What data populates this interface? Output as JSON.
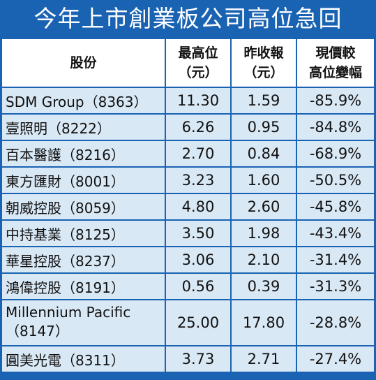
{
  "title": "今年上市創業板公司高位急回",
  "columns": {
    "stock": "股份",
    "high": [
      "最高位",
      "（元）"
    ],
    "close": [
      "昨收報",
      "（元）"
    ],
    "change": [
      "現價較",
      "高位變幅"
    ]
  },
  "rows": [
    {
      "name": "SDM Group（8363）",
      "high": "11.30",
      "close": "1.59",
      "change": "-85.9%"
    },
    {
      "name": "壹照明（8222）",
      "high": "6.26",
      "close": "0.95",
      "change": "-84.8%"
    },
    {
      "name": "百本醫護（8216）",
      "high": "2.70",
      "close": "0.84",
      "change": "-68.9%"
    },
    {
      "name": "東方匯財（8001）",
      "high": "3.23",
      "close": "1.60",
      "change": "-50.5%"
    },
    {
      "name": "朝威控股（8059）",
      "high": "4.80",
      "close": "2.60",
      "change": "-45.8%"
    },
    {
      "name": "中持基業（8125）",
      "high": "3.50",
      "close": "1.98",
      "change": "-43.4%"
    },
    {
      "name": "華星控股（8237）",
      "high": "3.06",
      "close": "2.10",
      "change": "-31.4%"
    },
    {
      "name": "鴻偉控股（8191）",
      "high": "0.56",
      "close": "0.39",
      "change": "-31.3%"
    },
    {
      "name": "Millennium Pacific（8147）",
      "high": "25.00",
      "close": "17.80",
      "change": "-28.8%"
    },
    {
      "name": "圓美光電（8311）",
      "high": "3.73",
      "close": "2.71",
      "change": "-27.4%"
    }
  ]
}
